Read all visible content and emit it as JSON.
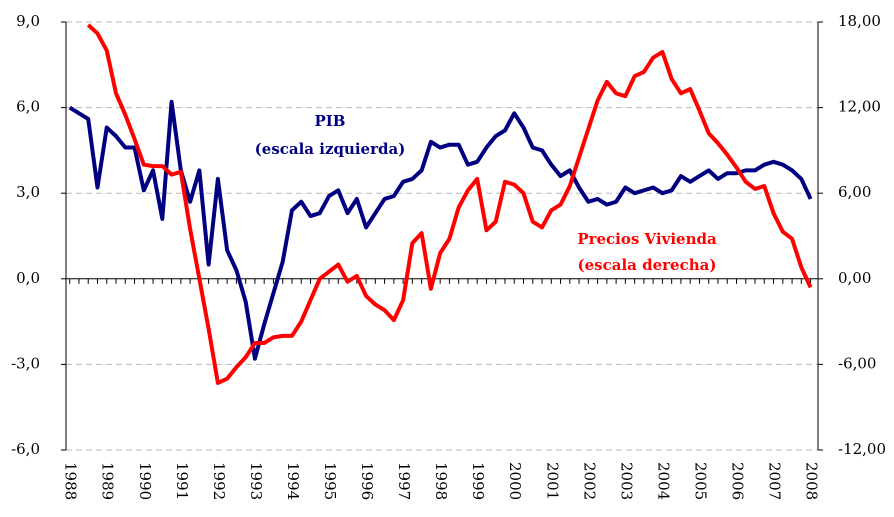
{
  "chart_data": {
    "type": "line",
    "annotations": [
      "PIB",
      "(escala izquierda)",
      "Precios Vivienda",
      "(escala derecha)"
    ],
    "x": [
      1988,
      1988.25,
      1988.5,
      1988.75,
      1989,
      1989.25,
      1989.5,
      1989.75,
      1990,
      1990.25,
      1990.5,
      1990.75,
      1991,
      1991.25,
      1991.5,
      1991.75,
      1992,
      1992.25,
      1992.5,
      1992.75,
      1993,
      1993.25,
      1993.5,
      1993.75,
      1994,
      1994.25,
      1994.5,
      1994.75,
      1995,
      1995.25,
      1995.5,
      1995.75,
      1996,
      1996.25,
      1996.5,
      1996.75,
      1997,
      1997.25,
      1997.5,
      1997.75,
      1998,
      1998.25,
      1998.5,
      1998.75,
      1999,
      1999.25,
      1999.5,
      1999.75,
      2000,
      2000.25,
      2000.5,
      2000.75,
      2001,
      2001.25,
      2001.5,
      2001.75,
      2002,
      2002.25,
      2002.5,
      2002.75,
      2003,
      2003.25,
      2003.5,
      2003.75,
      2004,
      2004.25,
      2004.5,
      2004.75,
      2005,
      2005.25,
      2005.5,
      2005.75,
      2006,
      2006.25,
      2006.5,
      2006.75,
      2007,
      2007.25,
      2007.5,
      2007.75,
      2008
    ],
    "series": [
      {
        "name": "PIB",
        "color": "#000080",
        "axis": "y",
        "values": [
          6.0,
          5.8,
          5.6,
          3.2,
          5.3,
          5.0,
          4.6,
          4.6,
          3.1,
          3.8,
          2.1,
          6.2,
          3.8,
          2.7,
          3.8,
          0.5,
          3.5,
          1.0,
          0.3,
          -0.8,
          -2.8,
          -1.6,
          -0.5,
          0.6,
          2.4,
          2.7,
          2.2,
          2.3,
          2.9,
          3.1,
          2.3,
          2.8,
          1.8,
          2.3,
          2.8,
          2.9,
          3.4,
          3.5,
          3.8,
          4.8,
          4.6,
          4.7,
          4.7,
          4.0,
          4.1,
          4.6,
          5.0,
          5.2,
          5.8,
          5.3,
          4.6,
          4.5,
          4.0,
          3.6,
          3.8,
          3.2,
          2.7,
          2.8,
          2.6,
          2.7,
          3.2,
          3.0,
          3.1,
          3.2,
          3.0,
          3.1,
          3.6,
          3.4,
          3.6,
          3.8,
          3.5,
          3.7,
          3.7,
          3.8,
          3.8,
          4.0,
          4.1,
          4.0,
          3.8,
          3.5,
          2.8
        ]
      },
      {
        "name": "Precios Vivienda",
        "color": "#ff0000",
        "axis": "y2",
        "values": [
          null,
          null,
          17.8,
          17.2,
          16.0,
          13.0,
          11.5,
          9.8,
          8.0,
          7.9,
          7.9,
          7.3,
          7.5,
          3.5,
          0.0,
          -3.5,
          -7.3,
          -7.0,
          -6.2,
          -5.5,
          -4.5,
          -4.5,
          -4.1,
          -4.0,
          -4.0,
          -3.0,
          -1.5,
          0.0,
          0.5,
          1.0,
          -0.2,
          0.2,
          -1.2,
          -1.8,
          -2.2,
          -2.9,
          -1.5,
          2.5,
          3.2,
          -0.7,
          1.8,
          2.8,
          5.0,
          6.2,
          7.0,
          3.4,
          4.0,
          6.8,
          6.6,
          6.0,
          4.0,
          3.6,
          4.8,
          5.2,
          6.5,
          8.5,
          10.5,
          12.5,
          13.8,
          13.0,
          12.8,
          14.2,
          14.5,
          15.5,
          15.9,
          14.0,
          13.0,
          13.3,
          11.8,
          10.2,
          9.5,
          8.7,
          7.8,
          6.8,
          6.3,
          6.5,
          4.6,
          3.3,
          2.8,
          0.8,
          -0.6
        ]
      }
    ],
    "xlim": [
      1987.9,
      2008.2
    ],
    "xticks": [
      1988,
      1989,
      1990,
      1991,
      1992,
      1993,
      1994,
      1995,
      1996,
      1997,
      1998,
      1999,
      2000,
      2001,
      2002,
      2003,
      2004,
      2005,
      2006,
      2007,
      2008
    ],
    "ylim": [
      -6,
      9
    ],
    "yticks": [
      {
        "value": -6,
        "label": "-6,0"
      },
      {
        "value": -3,
        "label": "-3,0"
      },
      {
        "value": 0,
        "label": "0,0"
      },
      {
        "value": 3,
        "label": "3,0"
      },
      {
        "value": 6,
        "label": "6,0"
      },
      {
        "value": 9,
        "label": "9,0"
      }
    ],
    "y2lim": [
      -12,
      18
    ],
    "y2ticks": [
      {
        "value": -12,
        "label": "-12,00"
      },
      {
        "value": -6,
        "label": "-6,00"
      },
      {
        "value": 0,
        "label": "0,00"
      },
      {
        "value": 6,
        "label": "6,00"
      },
      {
        "value": 12,
        "label": "12,00"
      },
      {
        "value": 18,
        "label": "18,00"
      }
    ],
    "grid": true
  }
}
